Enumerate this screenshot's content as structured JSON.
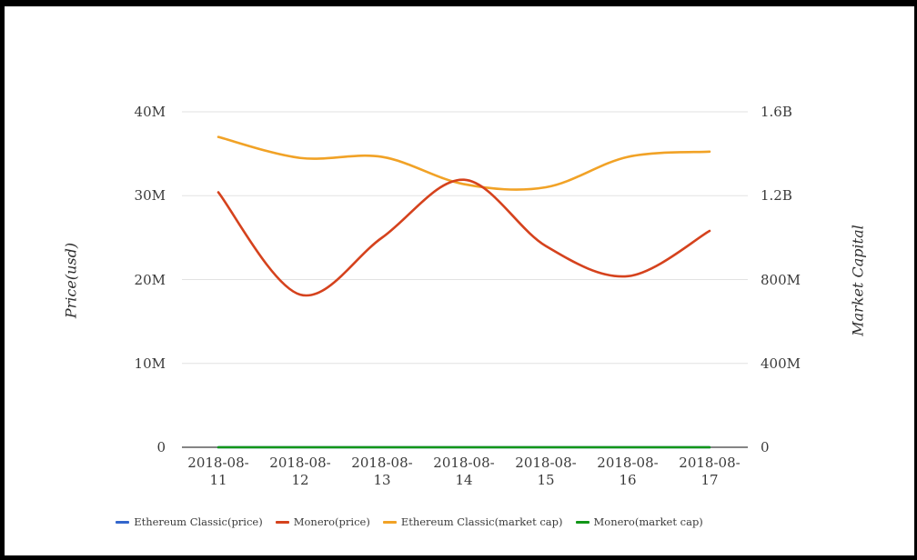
{
  "theme": {
    "background": "#ffffff",
    "frame_color": "#000000",
    "grid_color": "#e2e2e2",
    "axis_line_color": "#3c3c3c",
    "text_color": "#3a3a3a"
  },
  "axes": {
    "left": {
      "title": "Price(usd)",
      "ticks_top_to_bottom": [
        "40M",
        "30M",
        "20M",
        "10M",
        "0"
      ]
    },
    "right": {
      "title": "Market Capital",
      "ticks_top_to_bottom": [
        "1.6B",
        "1.2B",
        "800M",
        "400M",
        "0"
      ]
    },
    "x": {
      "labels": [
        "2018-08-11",
        "2018-08-12",
        "2018-08-13",
        "2018-08-14",
        "2018-08-15",
        "2018-08-16",
        "2018-08-17"
      ]
    }
  },
  "legend": {
    "items": [
      {
        "label": "Ethereum Classic(price)",
        "color": "#3366cc"
      },
      {
        "label": "Monero(price)",
        "color": "#d5421d"
      },
      {
        "label": "Ethereum Classic(market cap)",
        "color": "#f1a226"
      },
      {
        "label": "Monero(market cap)",
        "color": "#129618"
      }
    ]
  },
  "chart_data": {
    "type": "line",
    "x": [
      "2018-08-11",
      "2018-08-12",
      "2018-08-13",
      "2018-08-14",
      "2018-08-15",
      "2018-08-16",
      "2018-08-17"
    ],
    "series": [
      {
        "name": "Ethereum Classic(price)",
        "axis": "left",
        "color": "#3366cc",
        "values": [
          0,
          0,
          0,
          0,
          0,
          0,
          0
        ]
      },
      {
        "name": "Monero(price)",
        "axis": "left",
        "color": "#d5421d",
        "values": [
          30400000,
          18200000,
          25000000,
          31900000,
          24000000,
          20400000,
          25800000
        ]
      },
      {
        "name": "Ethereum Classic(market cap)",
        "axis": "right",
        "color": "#f1a226",
        "values": [
          1480000000,
          1380000000,
          1385000000,
          1255000000,
          1240000000,
          1385000000,
          1410000000
        ]
      },
      {
        "name": "Monero(market cap)",
        "axis": "right",
        "color": "#129618",
        "values": [
          0,
          0,
          0,
          0,
          0,
          0,
          0
        ]
      }
    ],
    "ylabel_left": "Price(usd)",
    "ylabel_right": "Market Capital",
    "ylim_left": [
      0,
      40000000
    ],
    "ylim_right": [
      0,
      1600000000
    ],
    "grid": true,
    "legend_position": "bottom"
  }
}
